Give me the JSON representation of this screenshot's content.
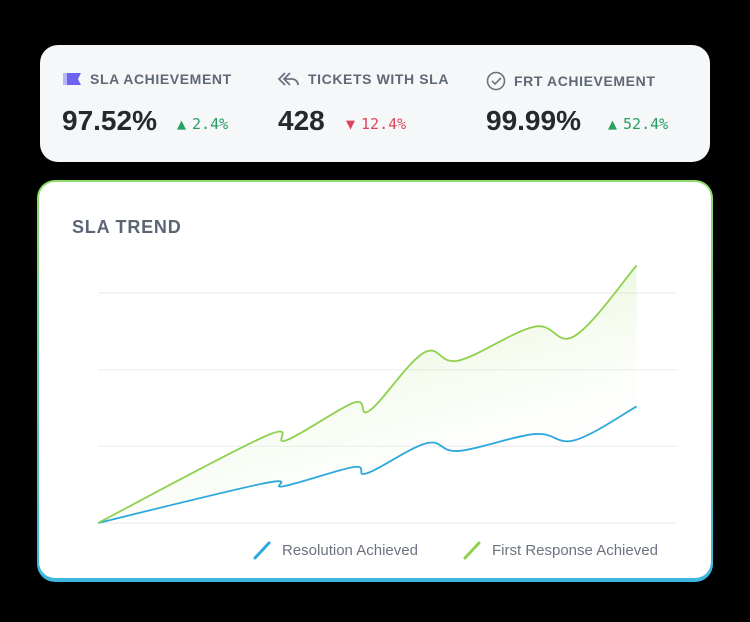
{
  "stats": [
    {
      "label": "SLA ACHIEVEMENT",
      "icon": "ticket-icon",
      "value": "97.52%",
      "change": "2.4%",
      "direction": "up"
    },
    {
      "label": "TICKETS WITH SLA",
      "icon": "reply-all-icon",
      "value": "428",
      "change": "12.4%",
      "direction": "down"
    },
    {
      "label": "FRT ACHIEVEMENT",
      "icon": "check-circle-icon",
      "value": "99.99%",
      "change": "52.4%",
      "direction": "up"
    }
  ],
  "colors": {
    "up": "#27a060",
    "down": "#e0445a",
    "resolution": "#2ea8dc",
    "first_response": "#8fd14f",
    "ticket_icon": "#6c63f0"
  },
  "chart_data": {
    "type": "line",
    "title": "SLA TREND",
    "xlabel": "",
    "ylabel": "",
    "xlim": [
      0,
      10.75
    ],
    "ylim": [
      0,
      3
    ],
    "grid": true,
    "legend": "bottom-right",
    "series": [
      {
        "name": "Resolution Achieved",
        "color": "#2ea8dc",
        "x": [
          0,
          3.1,
          3.45,
          4.75,
          5.0,
          6.1,
          6.7,
          8.1,
          8.85,
          10
        ],
        "values": [
          0,
          0.52,
          0.48,
          0.73,
          0.65,
          1.04,
          0.94,
          1.16,
          1.08,
          1.52
        ]
      },
      {
        "name": "First Response Achieved",
        "color": "#8fd14f",
        "x": [
          0,
          3.1,
          3.5,
          4.75,
          5.05,
          6.05,
          6.7,
          8.1,
          8.85,
          10
        ],
        "values": [
          0,
          1.13,
          1.08,
          1.57,
          1.47,
          2.22,
          2.12,
          2.56,
          2.44,
          3.36
        ]
      }
    ]
  }
}
